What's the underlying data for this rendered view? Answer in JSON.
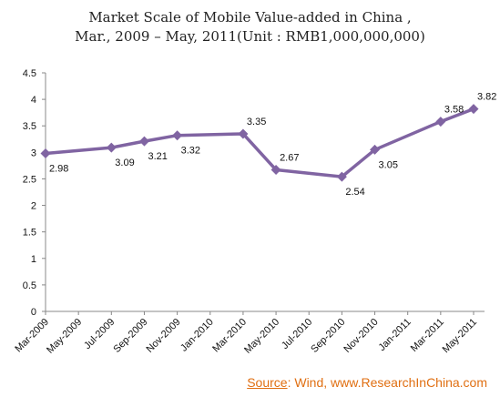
{
  "chart_data": {
    "type": "line",
    "title_line1": "Market Scale of Mobile Value-added in China ,",
    "title_line2": "Mar., 2009 – May, 2011(Unit : RMB1,000,000,000)",
    "categories": [
      "Mar-2009",
      "May-2009",
      "Jul-2009",
      "Sep-2009",
      "Nov-2009",
      "Jan-2010",
      "Mar-2010",
      "May-2010",
      "Jul-2010",
      "Sep-2010",
      "Nov-2010",
      "Jan-2011",
      "Mar-2011",
      "May-2011"
    ],
    "points": [
      {
        "x": "Mar-2009",
        "y": 2.98
      },
      {
        "x": "Jul-2009",
        "y": 3.09
      },
      {
        "x": "Sep-2009",
        "y": 3.21
      },
      {
        "x": "Nov-2009",
        "y": 3.32
      },
      {
        "x": "Mar-2010",
        "y": 3.35
      },
      {
        "x": "May-2010",
        "y": 2.67
      },
      {
        "x": "Sep-2010",
        "y": 2.54
      },
      {
        "x": "Nov-2010",
        "y": 3.05
      },
      {
        "x": "Mar-2011",
        "y": 3.58
      },
      {
        "x": "May-2011",
        "y": 3.82
      }
    ],
    "ylim": [
      0,
      4.5
    ],
    "yticks": [
      "0",
      "0.5",
      "1",
      "1.5",
      "2",
      "2.5",
      "3",
      "3.5",
      "4",
      "4.5"
    ],
    "grid": false,
    "legend": "none",
    "line_color": "#8064a2"
  },
  "source": {
    "label": "Source",
    "text": ": Wind, www.ResearchInChina.com",
    "color": "#e06f12"
  }
}
